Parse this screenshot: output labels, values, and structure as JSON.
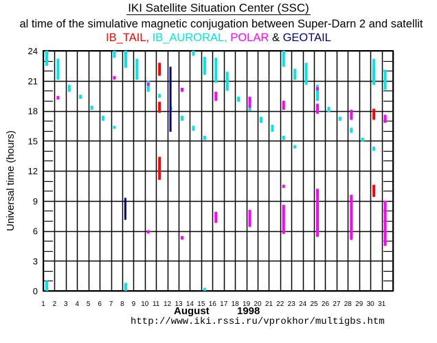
{
  "header": {
    "title": "IKI Satellite Situation Center (SSC)",
    "subtitle": "al time of the simulative magnetic conjugation between Super-Darn 2 and satellit",
    "legend": [
      {
        "label": "IB_TAIL,",
        "color": "#ff0000"
      },
      {
        "label": " IB_AURORAL,",
        "color": "#00e5e5"
      },
      {
        "label": " POLAR",
        "color": "#ff00ff"
      },
      {
        "label": " & ",
        "color": "#000000"
      },
      {
        "label": "GEOTAIL",
        "color": "#000080"
      }
    ]
  },
  "footer": {
    "month": "August",
    "year": "1998",
    "url": "http://www.iki.rssi.ru/vprokhor/multigbs.htm"
  },
  "chart_data": {
    "type": "scatter",
    "title": "IKI Satellite Situation Center (SSC)",
    "xlabel": "August 1998",
    "ylabel": "Universal time (hours)",
    "xlim": [
      1,
      32
    ],
    "ylim": [
      0,
      24
    ],
    "x_ticks": [
      "1",
      "2",
      "3",
      "4",
      "5",
      "6",
      "7",
      "8",
      "9",
      "10",
      "11",
      "12",
      "13",
      "14",
      "15",
      "16",
      "17",
      "18",
      "19",
      "20",
      "21",
      "22",
      "23",
      "24",
      "25",
      "26",
      "27",
      "28",
      "29",
      "30",
      "31"
    ],
    "y_ticks": [
      0,
      3,
      6,
      9,
      12,
      15,
      18,
      21,
      24
    ],
    "grid": true,
    "colors": {
      "IB_TAIL": "#ff0000",
      "IB_AURORAL": "#00e5e5",
      "POLAR": "#ff00ff",
      "GEOTAIL": "#000080"
    },
    "series": [
      {
        "name": "IB_TAIL",
        "segments": [
          {
            "day": 11,
            "from": 21.5,
            "to": 22.8
          },
          {
            "day": 11,
            "from": 17.8,
            "to": 18.9
          },
          {
            "day": 11,
            "from": 11.1,
            "to": 13.4
          },
          {
            "day": 30,
            "from": 20.6,
            "to": 22.4
          },
          {
            "day": 30,
            "from": 17.1,
            "to": 18.2
          },
          {
            "day": 30,
            "from": 9.4,
            "to": 10.6
          }
        ]
      },
      {
        "name": "IB_AURORAL",
        "segments": [
          {
            "day": 1,
            "from": 22.5,
            "to": 24.0
          },
          {
            "day": 1,
            "from": 0.0,
            "to": 1.0
          },
          {
            "day": 2,
            "from": 21.1,
            "to": 23.2
          },
          {
            "day": 3,
            "from": 19.9,
            "to": 20.6
          },
          {
            "day": 4,
            "from": 19.2,
            "to": 19.6
          },
          {
            "day": 5,
            "from": 18.1,
            "to": 18.5
          },
          {
            "day": 6,
            "from": 17.0,
            "to": 17.5
          },
          {
            "day": 7,
            "from": 23.3,
            "to": 24.0
          },
          {
            "day": 7,
            "from": 16.2,
            "to": 16.5
          },
          {
            "day": 8,
            "from": 22.3,
            "to": 24.0
          },
          {
            "day": 8,
            "from": 0.0,
            "to": 0.8
          },
          {
            "day": 9,
            "from": 21.1,
            "to": 23.2
          },
          {
            "day": 10,
            "from": 19.9,
            "to": 21.0
          },
          {
            "day": 11,
            "from": 19.3,
            "to": 19.7
          },
          {
            "day": 12,
            "from": 18.1,
            "to": 18.4
          },
          {
            "day": 13,
            "from": 17.0,
            "to": 17.5
          },
          {
            "day": 14,
            "from": 23.5,
            "to": 24.0
          },
          {
            "day": 14,
            "from": 16.0,
            "to": 16.5
          },
          {
            "day": 15,
            "from": 21.6,
            "to": 23.4
          },
          {
            "day": 15,
            "from": 15.1,
            "to": 15.5
          },
          {
            "day": 15,
            "from": 0.0,
            "to": 0.3
          },
          {
            "day": 16,
            "from": 20.8,
            "to": 23.3
          },
          {
            "day": 17,
            "from": 20.0,
            "to": 21.9
          },
          {
            "day": 18,
            "from": 18.9,
            "to": 19.4
          },
          {
            "day": 19,
            "from": 18.0,
            "to": 18.6
          },
          {
            "day": 20,
            "from": 16.8,
            "to": 17.4
          },
          {
            "day": 21,
            "from": 15.9,
            "to": 16.6
          },
          {
            "day": 22,
            "from": 22.4,
            "to": 24.0
          },
          {
            "day": 22,
            "from": 15.1,
            "to": 15.5
          },
          {
            "day": 23,
            "from": 21.1,
            "to": 22.2
          },
          {
            "day": 23,
            "from": 14.3,
            "to": 14.5
          },
          {
            "day": 24,
            "from": 20.6,
            "to": 22.8
          },
          {
            "day": 25,
            "from": 19.0,
            "to": 20.6
          },
          {
            "day": 26,
            "from": 17.9,
            "to": 18.4
          },
          {
            "day": 27,
            "from": 17.0,
            "to": 17.4
          },
          {
            "day": 28,
            "from": 15.8,
            "to": 16.3
          },
          {
            "day": 29,
            "from": 14.9,
            "to": 15.3
          },
          {
            "day": 30,
            "from": 20.6,
            "to": 23.2
          },
          {
            "day": 30,
            "from": 14.0,
            "to": 14.4
          },
          {
            "day": 31,
            "from": 20.1,
            "to": 22.1
          }
        ]
      },
      {
        "name": "POLAR",
        "segments": [
          {
            "day": 2,
            "from": 19.2,
            "to": 19.4
          },
          {
            "day": 7,
            "from": 21.2,
            "to": 21.4
          },
          {
            "day": 10,
            "from": 20.5,
            "to": 20.8
          },
          {
            "day": 10,
            "from": 5.8,
            "to": 6.0
          },
          {
            "day": 13,
            "from": 19.9,
            "to": 20.3
          },
          {
            "day": 13,
            "from": 5.2,
            "to": 5.4
          },
          {
            "day": 16,
            "from": 19.0,
            "to": 19.9
          },
          {
            "day": 16,
            "from": 6.8,
            "to": 7.9
          },
          {
            "day": 19,
            "from": 18.3,
            "to": 19.4
          },
          {
            "day": 19,
            "from": 6.4,
            "to": 8.1
          },
          {
            "day": 22,
            "from": 18.1,
            "to": 19.0
          },
          {
            "day": 22,
            "from": 10.3,
            "to": 10.6
          },
          {
            "day": 22,
            "from": 5.7,
            "to": 8.6
          },
          {
            "day": 25,
            "from": 20.1,
            "to": 20.3
          },
          {
            "day": 25,
            "from": 17.7,
            "to": 18.7
          },
          {
            "day": 25,
            "from": 5.4,
            "to": 10.2
          },
          {
            "day": 28,
            "from": 17.1,
            "to": 18.1
          },
          {
            "day": 28,
            "from": 5.1,
            "to": 9.6
          },
          {
            "day": 31,
            "from": 16.8,
            "to": 17.6
          },
          {
            "day": 31,
            "from": 4.5,
            "to": 9.0
          }
        ]
      },
      {
        "name": "GEOTAIL",
        "segments": [
          {
            "day": 8,
            "from": 7.1,
            "to": 9.3
          },
          {
            "day": 12,
            "from": 15.9,
            "to": 22.4
          }
        ]
      }
    ]
  }
}
